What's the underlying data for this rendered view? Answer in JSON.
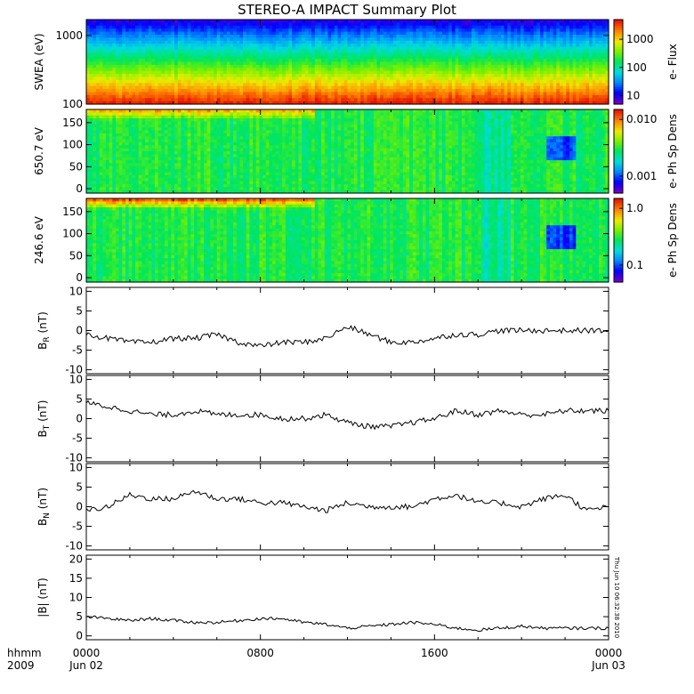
{
  "title": "STEREO-A IMPACT Summary Plot",
  "time_axis": {
    "start_hours": 0,
    "end_hours": 24,
    "ticks": [
      {
        "hours": 0,
        "label": "0000",
        "sub": "Jun 02"
      },
      {
        "hours": 8,
        "label": "0800",
        "sub": ""
      },
      {
        "hours": 16,
        "label": "1600",
        "sub": ""
      },
      {
        "hours": 24,
        "label": "0000",
        "sub": "Jun 03"
      }
    ],
    "corner_label": "hhmm",
    "corner_sub": "2009"
  },
  "timestamp": "Thu Jun 10 06:32:38 2010",
  "spectrograms": [
    {
      "ylabel": "SWEA (eV)",
      "scale": "log",
      "ylim": [
        100,
        1700
      ],
      "yticks": [
        {
          "v": 100,
          "label": "100"
        },
        {
          "v": 1000,
          "label": "1000"
        }
      ],
      "colorbar_label": "e- Flux",
      "colorbar_scale": "log",
      "colorbar_range": [
        5,
        5000
      ],
      "colorbar_ticks": [
        {
          "v": 10,
          "label": "10"
        },
        {
          "v": 100,
          "label": "100"
        },
        {
          "v": 1000,
          "label": "1000"
        }
      ]
    },
    {
      "ylabel": "650.7 eV",
      "scale": "linear",
      "ylim": [
        -10,
        180
      ],
      "yticks": [
        {
          "v": 0,
          "label": "0"
        },
        {
          "v": 50,
          "label": "50"
        },
        {
          "v": 100,
          "label": "100"
        },
        {
          "v": 150,
          "label": "150"
        }
      ],
      "colorbar_label": "e- Ph Sp Dens",
      "colorbar_scale": "log",
      "colorbar_range": [
        0.0005,
        0.015
      ],
      "colorbar_ticks": [
        {
          "v": 0.001,
          "label": "0.001"
        },
        {
          "v": 0.01,
          "label": "0.010"
        }
      ]
    },
    {
      "ylabel": "246.6 eV",
      "scale": "linear",
      "ylim": [
        -10,
        180
      ],
      "yticks": [
        {
          "v": 0,
          "label": "0"
        },
        {
          "v": 50,
          "label": "50"
        },
        {
          "v": 100,
          "label": "100"
        },
        {
          "v": 150,
          "label": "150"
        }
      ],
      "colorbar_label": "e- Ph Sp Dens",
      "colorbar_scale": "log",
      "colorbar_range": [
        0.05,
        1.5
      ],
      "colorbar_ticks": [
        {
          "v": 0.1,
          "label": "0.1"
        },
        {
          "v": 1.0,
          "label": "1.0"
        }
      ]
    }
  ],
  "chart_data": [
    {
      "type": "line",
      "ylabel": "B",
      "ylabel_sub": "R",
      "ylabel_unit": " (nT)",
      "ylim": [
        -11,
        11
      ],
      "yticks": [
        -10,
        -5,
        0,
        5,
        10
      ],
      "x": [
        0,
        1,
        2,
        3,
        4,
        5,
        6,
        7,
        8,
        9,
        10,
        11,
        12,
        13,
        14,
        15,
        16,
        17,
        18,
        19,
        20,
        21,
        22,
        23,
        24
      ],
      "values": [
        -1,
        -2,
        -3,
        -3,
        -2,
        -2,
        -1,
        -3,
        -4,
        -3,
        -3,
        -2,
        1,
        -1,
        -3,
        -3,
        -2,
        -1,
        -1,
        0,
        0,
        0,
        0,
        0,
        0
      ]
    },
    {
      "type": "line",
      "ylabel": "B",
      "ylabel_sub": "T",
      "ylabel_unit": " (nT)",
      "ylim": [
        -11,
        11
      ],
      "yticks": [
        -10,
        -5,
        0,
        5,
        10
      ],
      "x": [
        0,
        1,
        2,
        3,
        4,
        5,
        6,
        7,
        8,
        9,
        10,
        11,
        12,
        13,
        14,
        15,
        16,
        17,
        18,
        19,
        20,
        21,
        22,
        23,
        24
      ],
      "values": [
        4,
        3,
        2,
        1,
        1,
        2,
        1,
        1,
        1,
        0,
        0,
        1,
        -1,
        -2,
        -2,
        -1,
        0,
        2,
        1,
        2,
        1,
        1,
        2,
        2,
        2
      ]
    },
    {
      "type": "line",
      "ylabel": "B",
      "ylabel_sub": "N",
      "ylabel_unit": " (nT)",
      "ylim": [
        -11,
        11
      ],
      "yticks": [
        -10,
        -5,
        0,
        5,
        10
      ],
      "x": [
        0,
        1,
        2,
        3,
        4,
        5,
        6,
        7,
        8,
        9,
        10,
        11,
        12,
        13,
        14,
        15,
        16,
        17,
        18,
        19,
        20,
        21,
        22,
        23,
        24
      ],
      "values": [
        -1,
        0,
        3,
        2,
        2,
        4,
        2,
        2,
        1,
        1,
        0,
        -1,
        1,
        0,
        0,
        0,
        2,
        3,
        1,
        1,
        0,
        2,
        3,
        -1,
        0
      ]
    },
    {
      "type": "line",
      "ylabel": "|B| (nT)",
      "ylim": [
        -1,
        21
      ],
      "yticks": [
        0,
        5,
        10,
        15,
        20
      ],
      "x": [
        0,
        1,
        2,
        3,
        4,
        5,
        6,
        7,
        8,
        9,
        10,
        11,
        12,
        13,
        14,
        15,
        16,
        17,
        18,
        19,
        20,
        21,
        22,
        23,
        24
      ],
      "values": [
        5,
        4.5,
        4,
        4.5,
        4,
        3.5,
        3.5,
        4,
        4.5,
        4.5,
        3.5,
        3,
        2,
        2.5,
        3,
        3.5,
        3,
        2,
        1.5,
        2,
        2.5,
        2,
        2,
        2,
        2
      ]
    }
  ]
}
